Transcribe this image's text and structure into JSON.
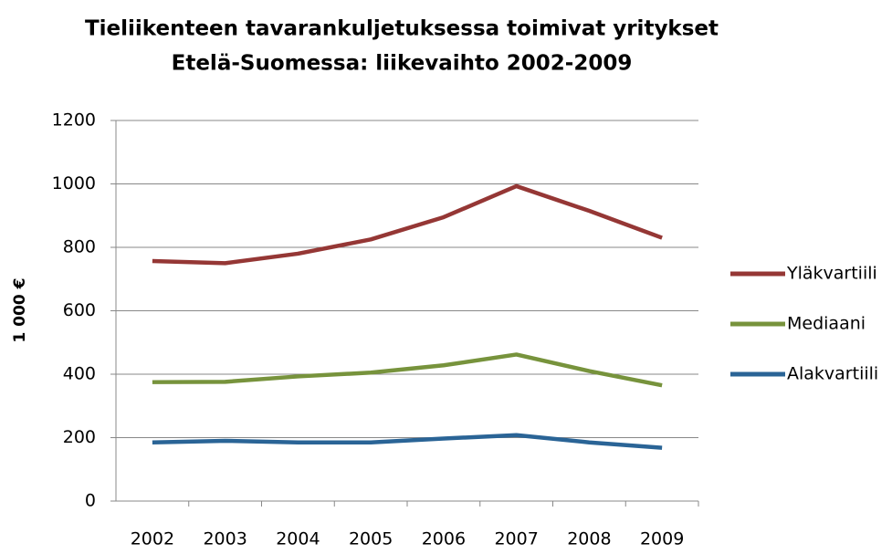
{
  "chart_data": {
    "type": "line",
    "title": [
      "Tieliikenteen tavarankuljetuksessa toimivat yritykset",
      "Etelä-Suomessa: liikevaihto 2002-2009"
    ],
    "y_label": "1 000 €",
    "categories": [
      "2002",
      "2003",
      "2004",
      "2005",
      "2006",
      "2007",
      "2008",
      "2009"
    ],
    "series": [
      {
        "name": "Yläkvartiili",
        "color": "#953735",
        "values": [
          757,
          750,
          780,
          825,
          895,
          993,
          915,
          830
        ]
      },
      {
        "name": "Mediaani",
        "color": "#77933c",
        "values": [
          375,
          376,
          393,
          405,
          428,
          462,
          410,
          365
        ]
      },
      {
        "name": "Alakvartiili",
        "color": "#2a6496",
        "values": [
          185,
          190,
          185,
          185,
          197,
          208,
          185,
          168
        ]
      }
    ],
    "ylim": [
      0,
      1200
    ],
    "yticks": [
      0,
      200,
      400,
      600,
      800,
      1000,
      1200
    ],
    "grid": true,
    "legend": "right"
  }
}
